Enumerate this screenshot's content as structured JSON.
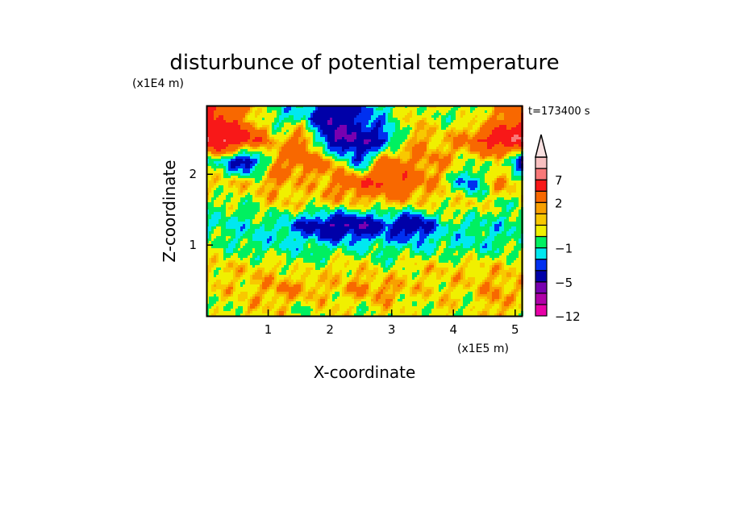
{
  "chart_data": {
    "type": "heatmap",
    "title": "disturbunce of potential temperature",
    "time_label": "t=173400 s",
    "xlabel": "X-coordinate",
    "ylabel": "Z-coordinate",
    "x_unit": "(x1E5 m)",
    "y_unit": "(x1E4 m)",
    "xlim": [
      0,
      5.12
    ],
    "ylim": [
      0,
      2.97
    ],
    "xticks": [
      "1",
      "2",
      "3",
      "4",
      "5"
    ],
    "xtick_values": [
      1,
      2,
      3,
      4,
      5
    ],
    "yticks": [
      "1",
      "2"
    ],
    "ytick_values": [
      1,
      2
    ],
    "colorbar": {
      "labels": [
        "7",
        "2",
        "−1",
        "−5",
        "−12"
      ],
      "label_values": [
        7,
        2,
        -1,
        -5,
        -12
      ],
      "levels": [
        -12,
        -9,
        -7,
        -5,
        -3,
        -2,
        -1,
        0,
        1,
        1.5,
        2,
        4,
        7,
        9,
        12
      ],
      "colors": [
        "#e800a8",
        "#b000a8",
        "#7800b0",
        "#0000a8",
        "#0030f0",
        "#00e8f0",
        "#00f060",
        "#f0f000",
        "#f8c800",
        "#f8a000",
        "#f86800",
        "#f81818",
        "#f87878",
        "#f8c0c0",
        "#f8e0e0"
      ],
      "extend": "max"
    },
    "grid_z": [
      2.8,
      2.5,
      2.2,
      1.9,
      1.6,
      1.3,
      1.0,
      0.7,
      0.4,
      0.1
    ],
    "grid_x": [
      0.2,
      0.65,
      1.1,
      1.55,
      2.0,
      2.45,
      2.9,
      3.35,
      3.8,
      4.25,
      4.7,
      5.1
    ],
    "values": [
      [
        4,
        2,
        -1,
        -1,
        -5,
        -3,
        -1,
        1,
        0,
        0,
        2,
        4
      ],
      [
        7,
        5,
        1,
        3,
        -5,
        -5,
        -3,
        2,
        1,
        3,
        6,
        7
      ],
      [
        -1,
        -5,
        2,
        3,
        2,
        -3,
        3,
        2,
        2,
        0,
        1,
        -5
      ],
      [
        1,
        1,
        2,
        1,
        2,
        4,
        4,
        3,
        1,
        -3,
        2,
        1
      ],
      [
        0,
        0,
        1,
        1,
        1,
        1,
        1,
        1,
        1,
        1,
        0,
        0
      ],
      [
        -1,
        -1,
        -1,
        -3,
        -5,
        -5,
        -3,
        -5,
        -1,
        -1,
        -1,
        -1
      ],
      [
        0,
        -1,
        -1,
        -1,
        -1,
        -1,
        -1,
        -1,
        -1,
        -1,
        -1,
        0
      ],
      [
        1,
        1,
        1,
        0,
        1,
        1,
        0,
        1,
        1,
        1,
        1,
        1
      ],
      [
        1,
        1,
        2,
        2,
        1,
        2,
        2,
        1,
        1,
        1,
        2,
        1
      ],
      [
        0,
        1,
        1,
        0,
        1,
        0,
        1,
        0,
        1,
        0,
        2,
        0
      ]
    ]
  }
}
